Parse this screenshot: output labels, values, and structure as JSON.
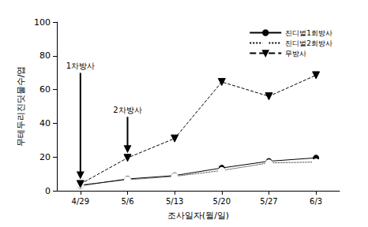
{
  "chart_data": {
    "type": "line",
    "xlabel": "조사일자(월/일)",
    "ylabel": "무테두리진딧물수/엽",
    "categories": [
      "4/29",
      "5/6",
      "5/13",
      "5/20",
      "5/27",
      "6/3"
    ],
    "series": [
      {
        "name": "진디벌1회방사",
        "color": "#000000",
        "marker": "circle",
        "line_style": "solid",
        "values": [
          3,
          7,
          9,
          13.5,
          17.5,
          19.5
        ]
      },
      {
        "name": "진디벌2회방사",
        "color": "#000000",
        "marker": "circle-open",
        "line_style": "dotted",
        "values": [
          3.5,
          6.5,
          8.5,
          12,
          16.5,
          17
        ]
      },
      {
        "name": "무방사",
        "color": "#000000",
        "marker": "triangle-down",
        "line_style": "dashed",
        "values": [
          4,
          19.5,
          31,
          64.5,
          56,
          68.5
        ]
      }
    ],
    "ylim": [
      0,
      100
    ],
    "yticks": [
      0,
      20,
      40,
      60,
      80,
      100
    ],
    "grid": false,
    "legend": "upper right",
    "annotations": [
      {
        "text": "1차방사",
        "x": "4/29"
      },
      {
        "text": "2차방사",
        "x": "5/6"
      }
    ]
  }
}
